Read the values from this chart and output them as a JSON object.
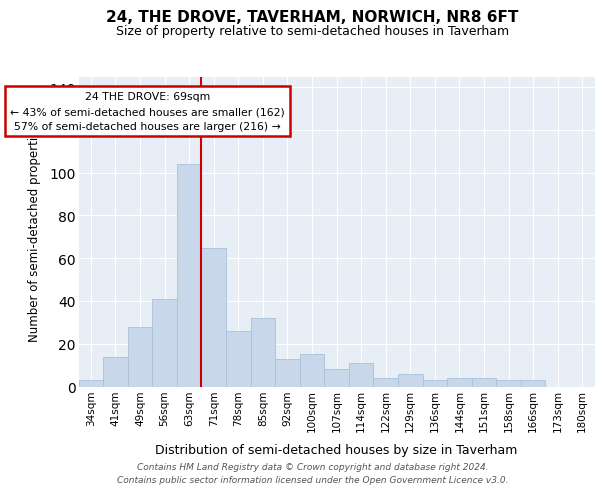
{
  "title": "24, THE DROVE, TAVERHAM, NORWICH, NR8 6FT",
  "subtitle": "Size of property relative to semi-detached houses in Taverham",
  "xlabel": "Distribution of semi-detached houses by size in Taverham",
  "ylabel": "Number of semi-detached properties",
  "categories": [
    "34sqm",
    "41sqm",
    "49sqm",
    "56sqm",
    "63sqm",
    "71sqm",
    "78sqm",
    "85sqm",
    "92sqm",
    "100sqm",
    "107sqm",
    "114sqm",
    "122sqm",
    "129sqm",
    "136sqm",
    "144sqm",
    "151sqm",
    "158sqm",
    "166sqm",
    "173sqm",
    "180sqm"
  ],
  "values": [
    3,
    14,
    28,
    41,
    104,
    65,
    26,
    32,
    13,
    15,
    8,
    11,
    4,
    6,
    3,
    4,
    4,
    3,
    3,
    0,
    0
  ],
  "bar_color": "#c8d8ea",
  "bar_edge_color": "#a8c0d8",
  "vline_color": "#cc0000",
  "vline_index": 5,
  "annotation_title": "24 THE DROVE: 69sqm",
  "annotation_line1": "← 43% of semi-detached houses are smaller (162)",
  "annotation_line2": "57% of semi-detached houses are larger (216) →",
  "annotation_box_color": "#ffffff",
  "annotation_box_edge": "#cc0000",
  "ylim": [
    0,
    145
  ],
  "yticks": [
    0,
    20,
    40,
    60,
    80,
    100,
    120,
    140
  ],
  "bg_color": "#e8eef5",
  "title_fontsize": 11,
  "subtitle_fontsize": 9,
  "footer": "Contains HM Land Registry data © Crown copyright and database right 2024.\nContains public sector information licensed under the Open Government Licence v3.0."
}
